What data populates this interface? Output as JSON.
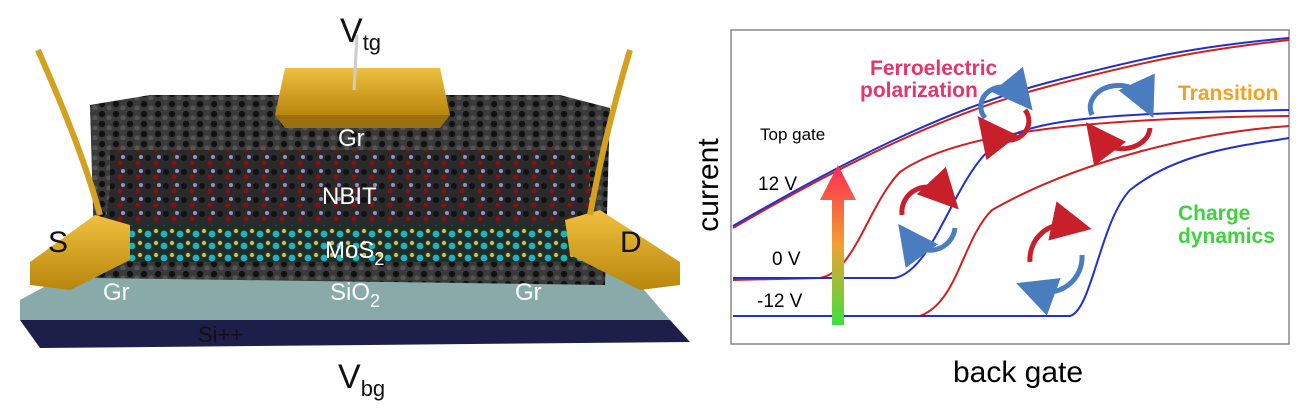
{
  "device": {
    "top_gate": {
      "symbol": "V",
      "subscript": "tg"
    },
    "back_gate": {
      "symbol": "V",
      "subscript": "bg"
    },
    "layers": {
      "top_graphene": "Gr",
      "ferroelectric": "NBIT",
      "channel": {
        "text": "MoS",
        "subscript": "2"
      },
      "dielectric": {
        "text": "SiO",
        "subscript": "2"
      },
      "substrate": "Si++"
    },
    "source": "S",
    "drain": "D",
    "contacts": [
      "Gr",
      "Gr"
    ]
  },
  "plot": {
    "y_axis_label": "current",
    "x_axis_label": "back gate",
    "arrow_label": "Top gate",
    "gate_levels": [
      "12 V",
      "0 V",
      "-12 V"
    ],
    "annotations": {
      "ferroelectric": [
        "Ferroelectric",
        "polarization"
      ],
      "transition": "Transition",
      "charge": [
        "Charge",
        "dynamics"
      ]
    }
  }
}
